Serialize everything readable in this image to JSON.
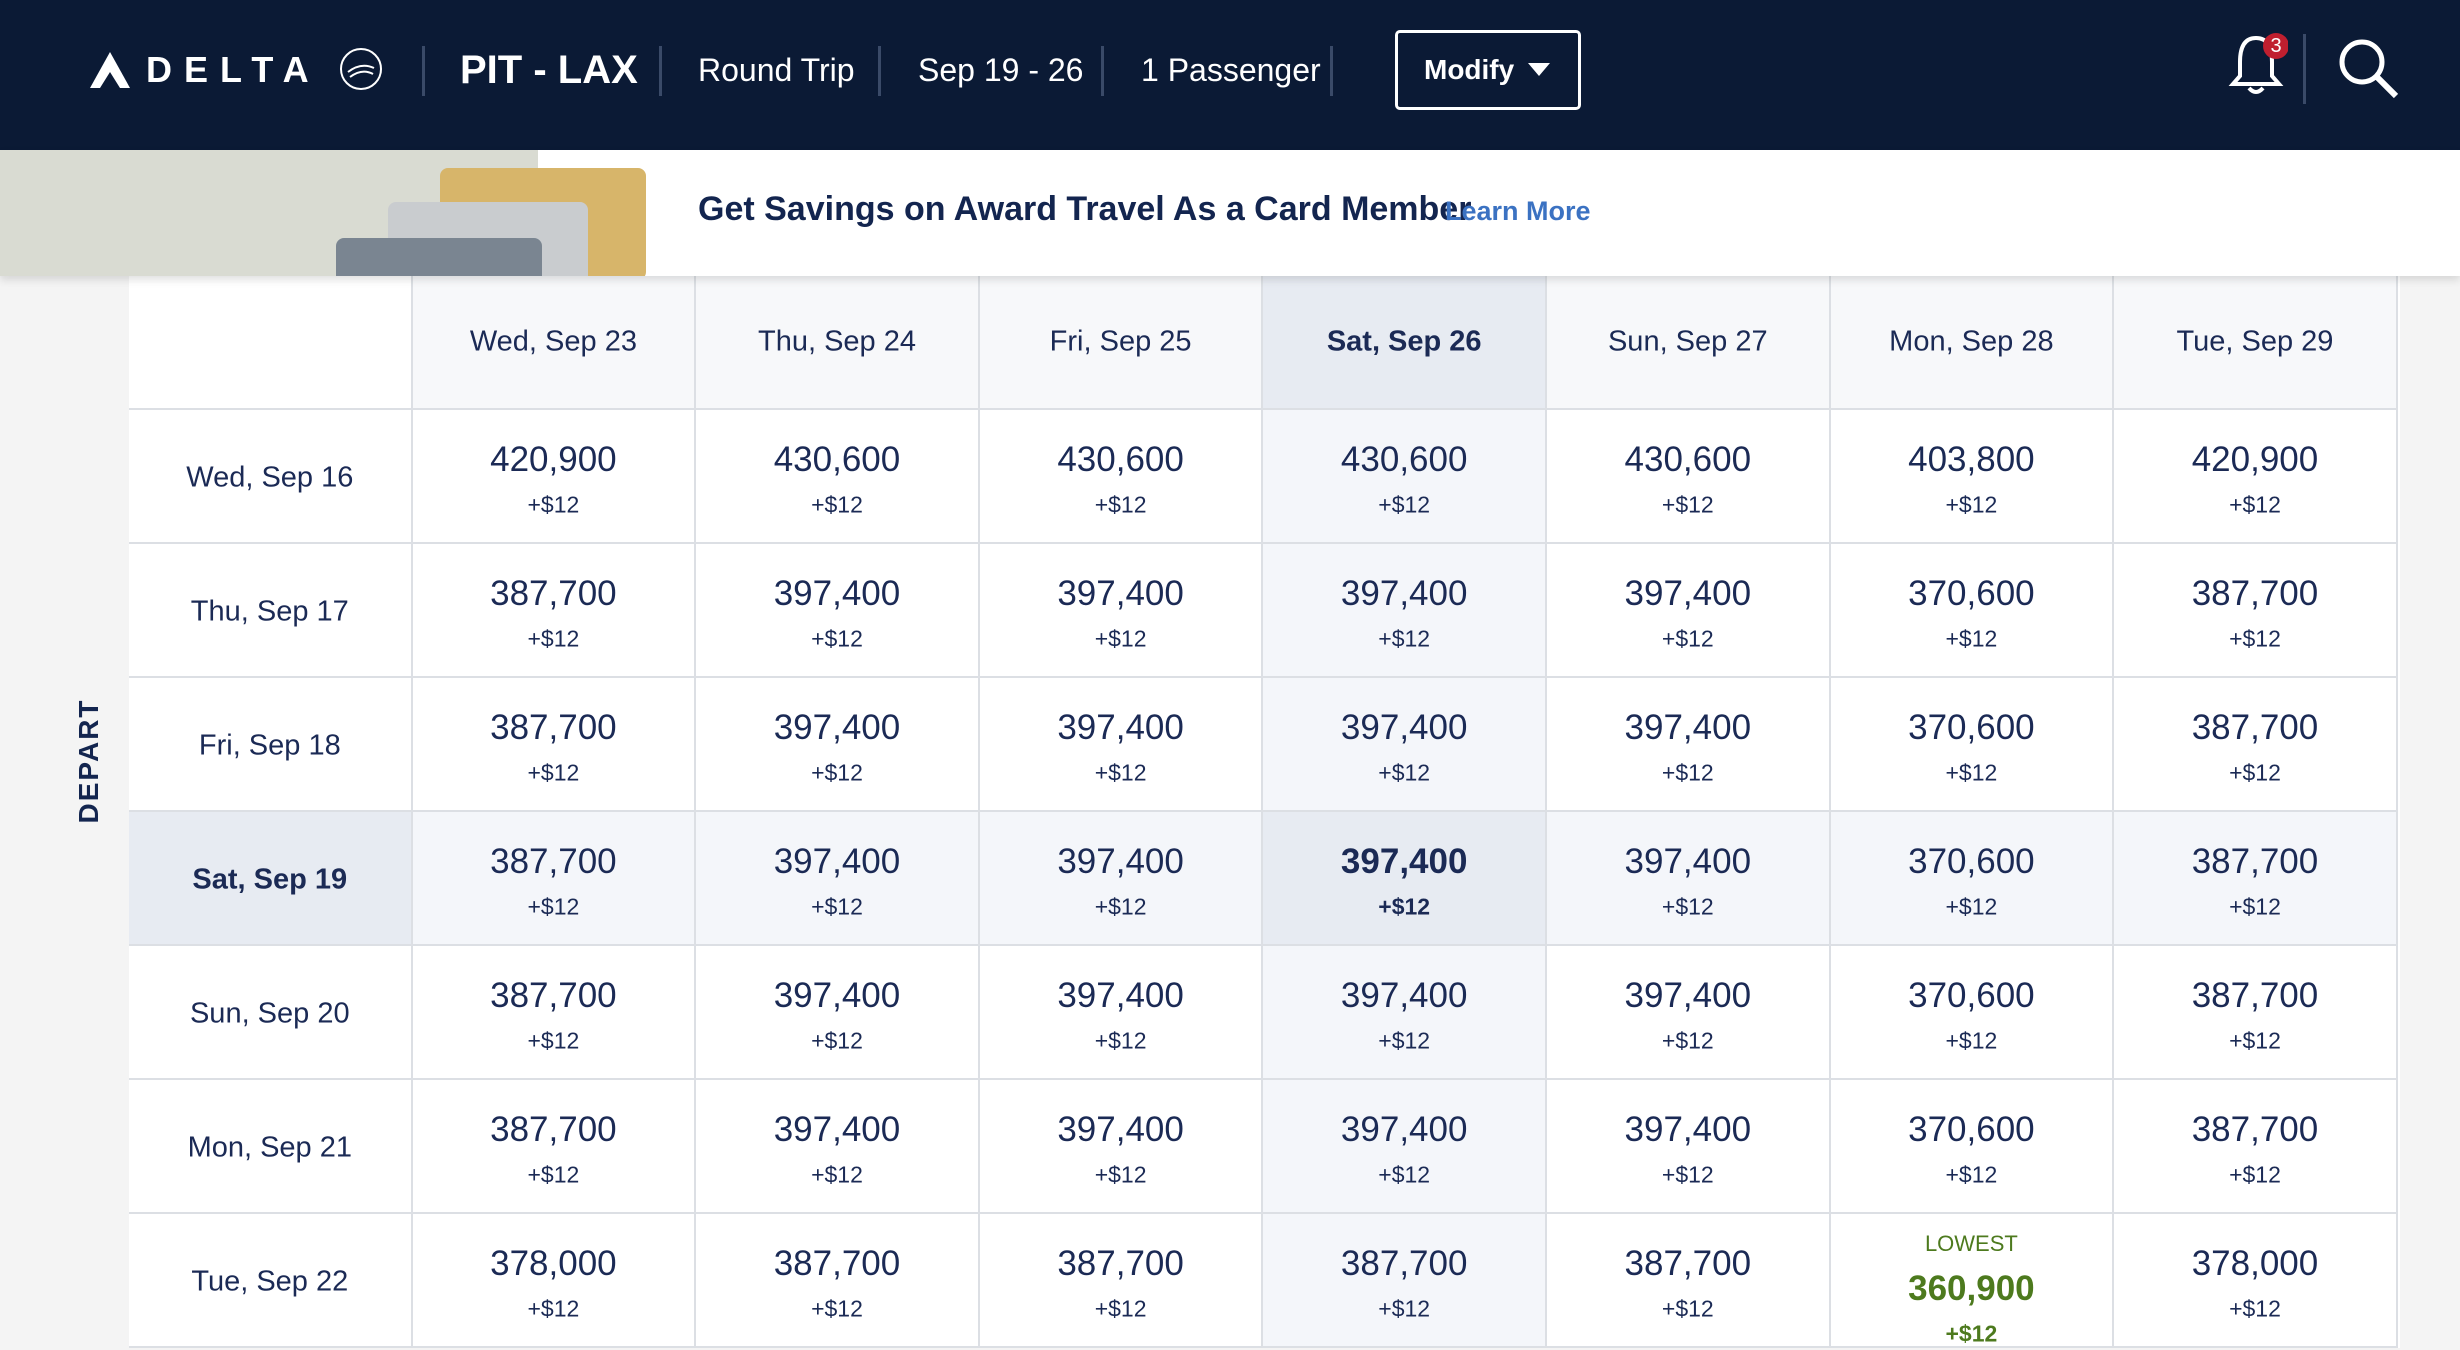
{
  "header": {
    "logo": "DELTA",
    "route": "PIT - LAX",
    "trip_type": "Round Trip",
    "dates": "Sep 19 - 26",
    "passengers": "1 Passenger",
    "modify_button": "Modify",
    "notification_count": "3"
  },
  "banner": {
    "headline": "Get Savings on Award Travel As a Card Member",
    "link": "Learn More"
  },
  "table": {
    "axis_label": "DEPART",
    "columns": [
      {
        "label": "Wed, Sep 23"
      },
      {
        "label": "Thu, Sep 24"
      },
      {
        "label": "Fri, Sep 25"
      },
      {
        "label": "Sat, Sep 26",
        "selected": true
      },
      {
        "label": "Sun, Sep 27"
      },
      {
        "label": "Mon, Sep 28"
      },
      {
        "label": "Tue, Sep 29"
      }
    ],
    "rows": [
      {
        "label": "Wed, Sep 16",
        "cells": [
          {
            "miles": "420,900",
            "fee": "+$12"
          },
          {
            "miles": "430,600",
            "fee": "+$12"
          },
          {
            "miles": "430,600",
            "fee": "+$12"
          },
          {
            "miles": "430,600",
            "fee": "+$12"
          },
          {
            "miles": "430,600",
            "fee": "+$12"
          },
          {
            "miles": "403,800",
            "fee": "+$12"
          },
          {
            "miles": "420,900",
            "fee": "+$12"
          }
        ]
      },
      {
        "label": "Thu, Sep 17",
        "cells": [
          {
            "miles": "387,700",
            "fee": "+$12"
          },
          {
            "miles": "397,400",
            "fee": "+$12"
          },
          {
            "miles": "397,400",
            "fee": "+$12"
          },
          {
            "miles": "397,400",
            "fee": "+$12"
          },
          {
            "miles": "397,400",
            "fee": "+$12"
          },
          {
            "miles": "370,600",
            "fee": "+$12"
          },
          {
            "miles": "387,700",
            "fee": "+$12"
          }
        ]
      },
      {
        "label": "Fri, Sep 18",
        "cells": [
          {
            "miles": "387,700",
            "fee": "+$12"
          },
          {
            "miles": "397,400",
            "fee": "+$12"
          },
          {
            "miles": "397,400",
            "fee": "+$12"
          },
          {
            "miles": "397,400",
            "fee": "+$12"
          },
          {
            "miles": "397,400",
            "fee": "+$12"
          },
          {
            "miles": "370,600",
            "fee": "+$12"
          },
          {
            "miles": "387,700",
            "fee": "+$12"
          }
        ]
      },
      {
        "label": "Sat, Sep 19",
        "selected": true,
        "cells": [
          {
            "miles": "387,700",
            "fee": "+$12"
          },
          {
            "miles": "397,400",
            "fee": "+$12"
          },
          {
            "miles": "397,400",
            "fee": "+$12"
          },
          {
            "miles": "397,400",
            "fee": "+$12"
          },
          {
            "miles": "397,400",
            "fee": "+$12"
          },
          {
            "miles": "370,600",
            "fee": "+$12"
          },
          {
            "miles": "387,700",
            "fee": "+$12"
          }
        ]
      },
      {
        "label": "Sun, Sep 20",
        "cells": [
          {
            "miles": "387,700",
            "fee": "+$12"
          },
          {
            "miles": "397,400",
            "fee": "+$12"
          },
          {
            "miles": "397,400",
            "fee": "+$12"
          },
          {
            "miles": "397,400",
            "fee": "+$12"
          },
          {
            "miles": "397,400",
            "fee": "+$12"
          },
          {
            "miles": "370,600",
            "fee": "+$12"
          },
          {
            "miles": "387,700",
            "fee": "+$12"
          }
        ]
      },
      {
        "label": "Mon, Sep 21",
        "cells": [
          {
            "miles": "387,700",
            "fee": "+$12"
          },
          {
            "miles": "397,400",
            "fee": "+$12"
          },
          {
            "miles": "397,400",
            "fee": "+$12"
          },
          {
            "miles": "397,400",
            "fee": "+$12"
          },
          {
            "miles": "397,400",
            "fee": "+$12"
          },
          {
            "miles": "370,600",
            "fee": "+$12"
          },
          {
            "miles": "387,700",
            "fee": "+$12"
          }
        ]
      },
      {
        "label": "Tue, Sep 22",
        "cells": [
          {
            "miles": "378,000",
            "fee": "+$12"
          },
          {
            "miles": "387,700",
            "fee": "+$12"
          },
          {
            "miles": "387,700",
            "fee": "+$12"
          },
          {
            "miles": "387,700",
            "fee": "+$12"
          },
          {
            "miles": "387,700",
            "fee": "+$12"
          },
          {
            "note": "LOWEST",
            "miles": "360,900",
            "fee": "+$12"
          },
          {
            "miles": "378,000",
            "fee": "+$12"
          }
        ]
      }
    ]
  }
}
